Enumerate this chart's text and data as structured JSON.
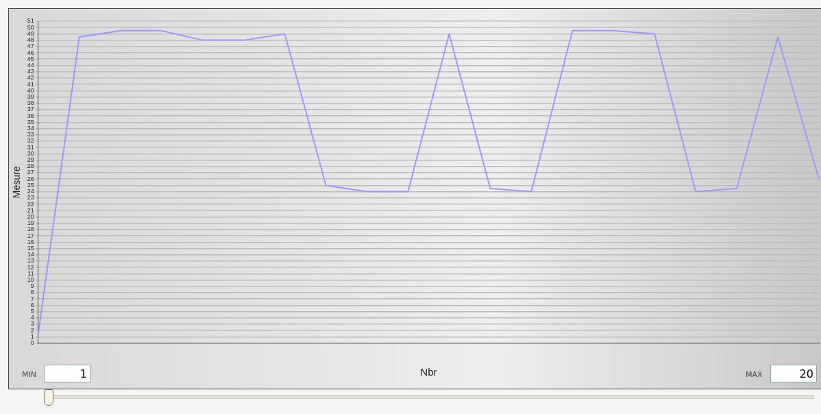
{
  "chart_data": {
    "type": "line",
    "xlabel": "Nbr",
    "ylabel": "Mesure",
    "categories": [
      null,
      null,
      null,
      null,
      null,
      null,
      null,
      null,
      null,
      null,
      null,
      null,
      null,
      null,
      null,
      null,
      null,
      null,
      null,
      null
    ],
    "series": [
      {
        "color": "#9999ff",
        "values": [
          1.5,
          48.5,
          49.5,
          49.5,
          48,
          48,
          49,
          25,
          24,
          24,
          49,
          24.5,
          24,
          49.5,
          49.5,
          49,
          24,
          24.5,
          48.5,
          26
        ]
      }
    ],
    "ylim": [
      0,
      51
    ],
    "yticks": [
      0,
      1,
      2,
      3,
      4,
      5,
      6,
      7,
      8,
      9,
      10,
      11,
      12,
      13,
      14,
      15,
      16,
      17,
      18,
      19,
      20,
      21,
      22,
      23,
      24,
      25,
      26,
      27,
      28,
      29,
      30,
      31,
      32,
      33,
      34,
      35,
      36,
      37,
      38,
      39,
      40,
      41,
      42,
      43,
      44,
      45,
      46,
      47,
      48,
      49,
      50,
      51
    ],
    "grid": "y",
    "marker": "none",
    "line_style": "solid",
    "legend": false,
    "annotations": [
      "MIN",
      "1",
      "MAX",
      "20"
    ]
  }
}
